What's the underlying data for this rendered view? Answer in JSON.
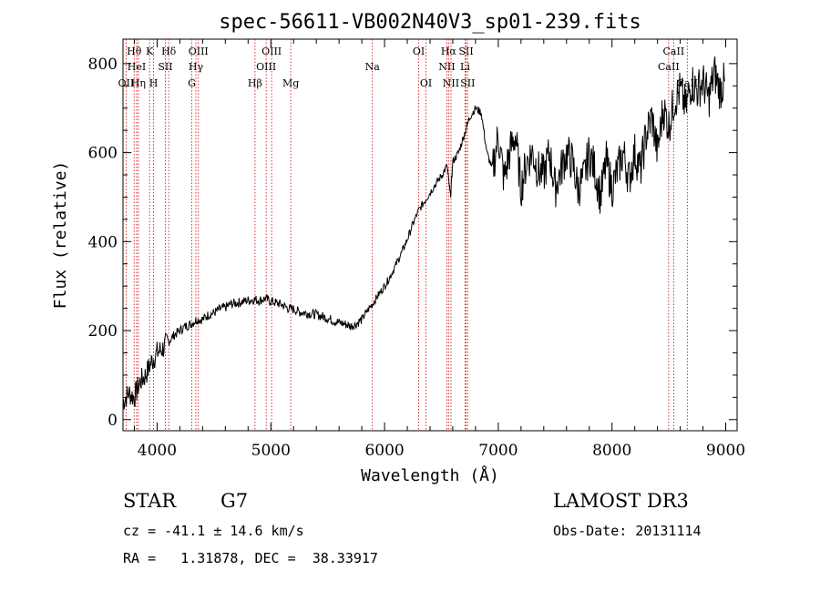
{
  "chart_data": {
    "type": "line",
    "title": "spec-56611-VB002N40V3_sp01-239.fits",
    "xlabel": "Wavelength (Å)",
    "ylabel": "Flux (relative)",
    "xlim": [
      3700,
      9100
    ],
    "ylim": [
      -25,
      855
    ],
    "x_ticks": [
      4000,
      5000,
      6000,
      7000,
      8000,
      9000
    ],
    "y_ticks": [
      0,
      200,
      400,
      600,
      800
    ],
    "grid": false,
    "series": [
      {
        "name": "spectrum",
        "color": "#000000",
        "x": [
          3700,
          3750,
          3800,
          3850,
          3900,
          3950,
          4000,
          4050,
          4100,
          4150,
          4200,
          4250,
          4300,
          4350,
          4400,
          4450,
          4500,
          4550,
          4600,
          4650,
          4700,
          4750,
          4800,
          4850,
          4900,
          4950,
          5000,
          5050,
          5100,
          5150,
          5200,
          5250,
          5300,
          5350,
          5400,
          5450,
          5500,
          5550,
          5600,
          5650,
          5700,
          5750,
          5800,
          5850,
          5900,
          5950,
          6000,
          6050,
          6100,
          6150,
          6200,
          6250,
          6300,
          6350,
          6400,
          6450,
          6500,
          6550,
          6580,
          6600,
          6650,
          6700,
          6750,
          6800,
          6850,
          6900,
          6950,
          7000,
          7050,
          7100,
          7150,
          7200,
          7250,
          7300,
          7350,
          7400,
          7450,
          7500,
          7550,
          7600,
          7650,
          7700,
          7750,
          7800,
          7850,
          7900,
          7950,
          8000,
          8050,
          8100,
          8150,
          8200,
          8250,
          8300,
          8350,
          8400,
          8450,
          8500,
          8550,
          8600,
          8650,
          8700,
          8750,
          8800,
          8850,
          8900,
          8950,
          8990
        ],
        "y": [
          40,
          60,
          50,
          85,
          100,
          130,
          150,
          160,
          175,
          190,
          200,
          210,
          215,
          225,
          225,
          235,
          240,
          248,
          252,
          260,
          262,
          265,
          268,
          270,
          268,
          272,
          266,
          262,
          258,
          250,
          248,
          242,
          240,
          238,
          236,
          232,
          228,
          222,
          218,
          215,
          210,
          215,
          225,
          245,
          262,
          282,
          300,
          322,
          348,
          375,
          405,
          440,
          470,
          490,
          510,
          530,
          548,
          570,
          500,
          580,
          600,
          640,
          680,
          700,
          690,
          600,
          560,
          640,
          540,
          600,
          640,
          520,
          580,
          600,
          560,
          550,
          600,
          520,
          560,
          600,
          580,
          520,
          540,
          600,
          560,
          500,
          580,
          520,
          560,
          600,
          540,
          600,
          560,
          640,
          680,
          600,
          700,
          660,
          720,
          740,
          700,
          760,
          740,
          760,
          720,
          780,
          740,
          760
        ]
      }
    ],
    "spectral_lines": [
      {
        "name": "Hθ",
        "wavelength": 3798,
        "row": 1
      },
      {
        "name": "HeI",
        "wavelength": 3820,
        "row": 2
      },
      {
        "name": "OII",
        "wavelength": 3727,
        "row": 3
      },
      {
        "name": "Hη",
        "wavelength": 3835,
        "row": 3
      },
      {
        "name": "K",
        "wavelength": 3934,
        "row": 1
      },
      {
        "name": "H",
        "wavelength": 3969,
        "row": 3
      },
      {
        "name": "SII",
        "wavelength": 4072,
        "row": 2
      },
      {
        "name": "Hδ",
        "wavelength": 4102,
        "row": 1
      },
      {
        "name": "OIII",
        "wavelength": 4363,
        "row": 1
      },
      {
        "name": "Hγ",
        "wavelength": 4341,
        "row": 2
      },
      {
        "name": "G",
        "wavelength": 4305,
        "row": 3
      },
      {
        "name": "Hβ",
        "wavelength": 4861,
        "row": 3
      },
      {
        "name": "OIII",
        "wavelength": 5007,
        "row": 1
      },
      {
        "name": "OIII",
        "wavelength": 4959,
        "row": 2
      },
      {
        "name": "Mg",
        "wavelength": 5175,
        "row": 3
      },
      {
        "name": "Na",
        "wavelength": 5893,
        "row": 2
      },
      {
        "name": "OI",
        "wavelength": 6300,
        "row": 1
      },
      {
        "name": "OI",
        "wavelength": 6364,
        "row": 3
      },
      {
        "name": "Hα",
        "wavelength": 6563,
        "row": 1
      },
      {
        "name": "NII",
        "wavelength": 6548,
        "row": 2
      },
      {
        "name": "NII",
        "wavelength": 6584,
        "row": 3
      },
      {
        "name": "SII",
        "wavelength": 6717,
        "row": 1
      },
      {
        "name": "SII",
        "wavelength": 6731,
        "row": 3
      },
      {
        "name": "Li",
        "wavelength": 6708,
        "row": 2
      },
      {
        "name": "CaII",
        "wavelength": 8542,
        "row": 1
      },
      {
        "name": "CaII",
        "wavelength": 8498,
        "row": 2
      },
      {
        "name": "CaII",
        "wavelength": 8662,
        "row": 3
      }
    ],
    "spectral_line_color": "#cc0000"
  },
  "footer": {
    "object_type": "STAR",
    "subclass": "G7",
    "survey": "LAMOST DR3",
    "redshift": "cz = -41.1 ± 14.6 km/s",
    "obs_date": "Obs-Date: 20131114",
    "coords": "RA =   1.31878, DEC =  38.33917"
  }
}
